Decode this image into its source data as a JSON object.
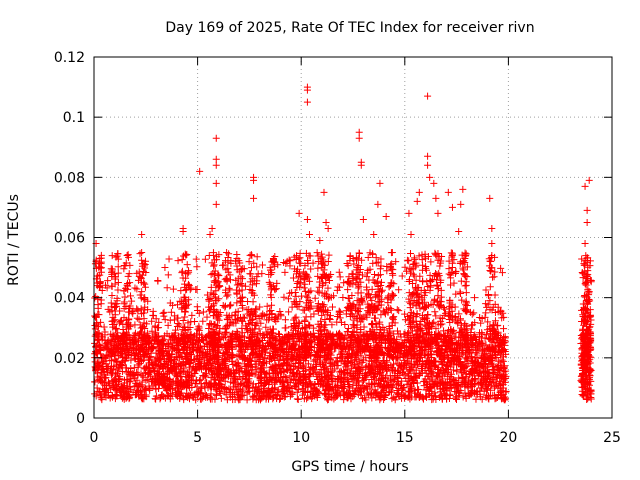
{
  "chart_data": {
    "type": "scatter",
    "title": "Day 169 of 2025, Rate Of TEC Index for receiver rivn",
    "xlabel": "GPS time / hours",
    "ylabel": "ROTI / TECUs",
    "xlim": [
      0,
      25
    ],
    "ylim": [
      0,
      0.12
    ],
    "xticks": [
      0,
      5,
      10,
      15,
      20,
      25
    ],
    "xtick_labels": [
      "0",
      "5",
      "10",
      "15",
      "20",
      "25"
    ],
    "yticks": [
      0,
      0.02,
      0.04,
      0.06,
      0.08,
      0.1,
      0.12
    ],
    "ytick_labels": [
      "0",
      "0.02",
      "0.04",
      "0.06",
      "0.08",
      "0.1",
      "0.12"
    ],
    "grid": true,
    "marker": "+",
    "series": [
      {
        "name": "ROTI",
        "color": "#ff0000",
        "notes_bulk": "Dense cloud of points between roughly 0.005 and 0.03 TECU from 0 to ~19.9 h, with a second cluster from ~23.5 to 24 h",
        "outliers": [
          {
            "x": 0.1,
            "y": 0.058
          },
          {
            "x": 0.1,
            "y": 0.052
          },
          {
            "x": 0.3,
            "y": 0.045
          },
          {
            "x": 1.1,
            "y": 0.038
          },
          {
            "x": 1.7,
            "y": 0.048
          },
          {
            "x": 2.3,
            "y": 0.061
          },
          {
            "x": 2.3,
            "y": 0.055
          },
          {
            "x": 2.3,
            "y": 0.042
          },
          {
            "x": 3.0,
            "y": 0.033
          },
          {
            "x": 4.3,
            "y": 0.063
          },
          {
            "x": 4.3,
            "y": 0.062
          },
          {
            "x": 4.5,
            "y": 0.051
          },
          {
            "x": 4.6,
            "y": 0.044
          },
          {
            "x": 5.1,
            "y": 0.082
          },
          {
            "x": 5.6,
            "y": 0.061
          },
          {
            "x": 5.7,
            "y": 0.063
          },
          {
            "x": 5.9,
            "y": 0.093
          },
          {
            "x": 5.9,
            "y": 0.086
          },
          {
            "x": 5.9,
            "y": 0.084
          },
          {
            "x": 5.9,
            "y": 0.078
          },
          {
            "x": 5.9,
            "y": 0.071
          },
          {
            "x": 6.4,
            "y": 0.055
          },
          {
            "x": 6.9,
            "y": 0.053
          },
          {
            "x": 7.6,
            "y": 0.05
          },
          {
            "x": 7.7,
            "y": 0.08
          },
          {
            "x": 7.7,
            "y": 0.079
          },
          {
            "x": 7.7,
            "y": 0.073
          },
          {
            "x": 8.1,
            "y": 0.048
          },
          {
            "x": 8.8,
            "y": 0.043
          },
          {
            "x": 9.9,
            "y": 0.068
          },
          {
            "x": 10.3,
            "y": 0.11
          },
          {
            "x": 10.3,
            "y": 0.109
          },
          {
            "x": 10.3,
            "y": 0.105
          },
          {
            "x": 10.3,
            "y": 0.066
          },
          {
            "x": 10.4,
            "y": 0.061
          },
          {
            "x": 10.9,
            "y": 0.059
          },
          {
            "x": 11.0,
            "y": 0.05
          },
          {
            "x": 11.1,
            "y": 0.075
          },
          {
            "x": 11.2,
            "y": 0.065
          },
          {
            "x": 11.3,
            "y": 0.063
          },
          {
            "x": 12.8,
            "y": 0.095
          },
          {
            "x": 12.8,
            "y": 0.093
          },
          {
            "x": 12.9,
            "y": 0.085
          },
          {
            "x": 12.9,
            "y": 0.084
          },
          {
            "x": 13.0,
            "y": 0.066
          },
          {
            "x": 12.5,
            "y": 0.053
          },
          {
            "x": 13.5,
            "y": 0.061
          },
          {
            "x": 13.7,
            "y": 0.071
          },
          {
            "x": 13.8,
            "y": 0.078
          },
          {
            "x": 14.1,
            "y": 0.067
          },
          {
            "x": 14.4,
            "y": 0.055
          },
          {
            "x": 15.2,
            "y": 0.068
          },
          {
            "x": 15.3,
            "y": 0.061
          },
          {
            "x": 15.6,
            "y": 0.072
          },
          {
            "x": 15.7,
            "y": 0.075
          },
          {
            "x": 16.1,
            "y": 0.107
          },
          {
            "x": 16.1,
            "y": 0.087
          },
          {
            "x": 16.1,
            "y": 0.084
          },
          {
            "x": 16.2,
            "y": 0.08
          },
          {
            "x": 16.4,
            "y": 0.078
          },
          {
            "x": 16.5,
            "y": 0.073
          },
          {
            "x": 16.6,
            "y": 0.068
          },
          {
            "x": 17.1,
            "y": 0.075
          },
          {
            "x": 17.3,
            "y": 0.07
          },
          {
            "x": 17.7,
            "y": 0.071
          },
          {
            "x": 17.8,
            "y": 0.076
          },
          {
            "x": 17.6,
            "y": 0.062
          },
          {
            "x": 17.9,
            "y": 0.053
          },
          {
            "x": 18.0,
            "y": 0.047
          },
          {
            "x": 19.1,
            "y": 0.073
          },
          {
            "x": 19.2,
            "y": 0.063
          },
          {
            "x": 19.2,
            "y": 0.058
          },
          {
            "x": 19.2,
            "y": 0.054
          },
          {
            "x": 19.2,
            "y": 0.05
          },
          {
            "x": 18.9,
            "y": 0.038
          },
          {
            "x": 23.7,
            "y": 0.077
          },
          {
            "x": 23.8,
            "y": 0.069
          },
          {
            "x": 23.8,
            "y": 0.065
          },
          {
            "x": 23.9,
            "y": 0.079
          },
          {
            "x": 23.7,
            "y": 0.058
          },
          {
            "x": 23.9,
            "y": 0.042
          },
          {
            "x": 23.6,
            "y": 0.048
          }
        ]
      }
    ]
  }
}
